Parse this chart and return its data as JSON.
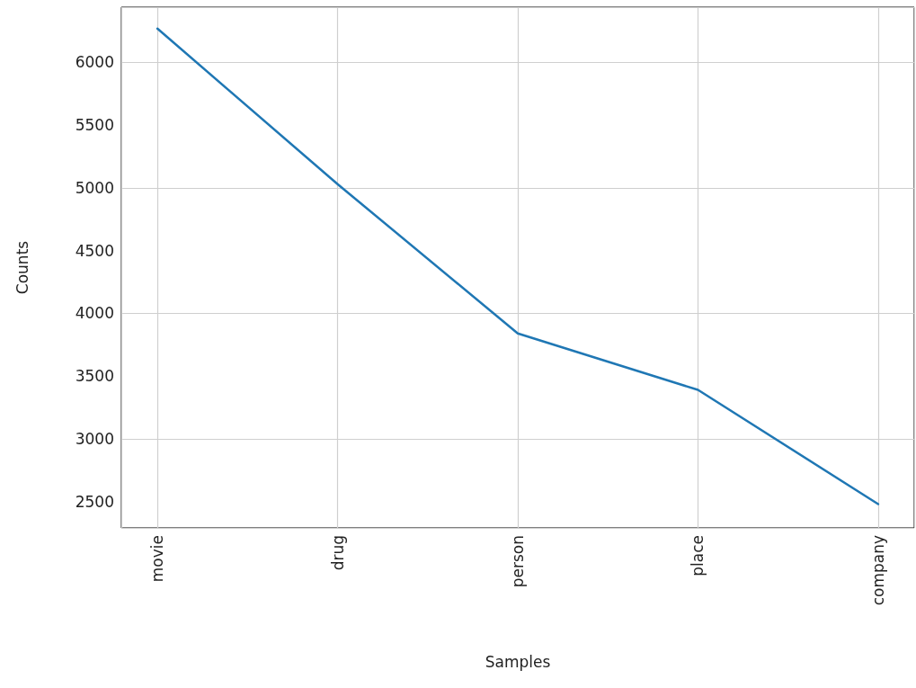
{
  "chart_data": {
    "type": "line",
    "xlabel": "Samples",
    "ylabel": "Counts",
    "categories": [
      "movie",
      "drug",
      "person",
      "place",
      "company"
    ],
    "series": [
      {
        "color": "#1f77b4",
        "values": [
          6270,
          5030,
          3840,
          3390,
          2480
        ]
      }
    ],
    "ylim": [
      2290,
      6440
    ],
    "yticks": [
      2500,
      3000,
      3500,
      4000,
      4500,
      5000,
      5500,
      6000
    ],
    "grid": true,
    "marker": "none",
    "line_style": "solid"
  }
}
